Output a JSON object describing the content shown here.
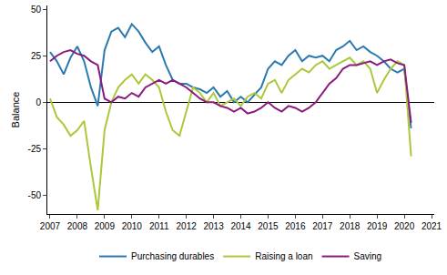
{
  "chart_data": {
    "type": "line",
    "y_label": "Balance",
    "x": [
      2007,
      2007.25,
      2007.5,
      2007.75,
      2008,
      2008.25,
      2008.5,
      2008.75,
      2009,
      2009.25,
      2009.5,
      2009.75,
      2010,
      2010.25,
      2010.5,
      2010.75,
      2011,
      2011.25,
      2011.5,
      2011.75,
      2012,
      2012.25,
      2012.5,
      2012.75,
      2013,
      2013.25,
      2013.5,
      2013.75,
      2014,
      2014.25,
      2014.5,
      2014.75,
      2015,
      2015.25,
      2015.5,
      2015.75,
      2016,
      2016.25,
      2016.5,
      2016.75,
      2017,
      2017.25,
      2017.5,
      2017.75,
      2018,
      2018.25,
      2018.5,
      2018.75,
      2019,
      2019.25,
      2019.5,
      2019.75,
      2020,
      2020.25
    ],
    "series": [
      {
        "name": "Purchasing durables",
        "color": "#2a7ab0",
        "values": [
          27,
          22,
          15,
          24,
          30,
          22,
          8,
          -2,
          28,
          38,
          40,
          35,
          42,
          38,
          32,
          27,
          30,
          20,
          12,
          10,
          10,
          8,
          7,
          5,
          8,
          3,
          6,
          0,
          3,
          0,
          4,
          8,
          18,
          22,
          20,
          25,
          28,
          22,
          25,
          24,
          25,
          22,
          28,
          30,
          33,
          28,
          30,
          27,
          25,
          22,
          18,
          16,
          18,
          -14
        ]
      },
      {
        "name": "Raising a loan",
        "color": "#aac83a",
        "values": [
          2,
          -8,
          -12,
          -18,
          -15,
          -10,
          -35,
          -58,
          -15,
          0,
          8,
          12,
          15,
          10,
          15,
          12,
          8,
          -5,
          -15,
          -18,
          -5,
          8,
          5,
          0,
          5,
          -2,
          0,
          2,
          -2,
          3,
          5,
          2,
          10,
          12,
          5,
          12,
          15,
          18,
          16,
          20,
          22,
          18,
          20,
          22,
          24,
          20,
          22,
          18,
          5,
          12,
          18,
          22,
          20,
          -29
        ]
      },
      {
        "name": "Saving",
        "color": "#8b1a7f",
        "values": [
          22,
          25,
          27,
          28,
          26,
          25,
          22,
          20,
          2,
          0,
          3,
          2,
          5,
          3,
          8,
          10,
          12,
          10,
          12,
          10,
          8,
          5,
          2,
          0,
          0,
          -2,
          -3,
          -5,
          -3,
          -6,
          -5,
          -3,
          0,
          -3,
          -5,
          -2,
          -3,
          -5,
          -3,
          0,
          5,
          10,
          13,
          18,
          20,
          20,
          21,
          22,
          20,
          22,
          23,
          21,
          20,
          -11
        ]
      }
    ],
    "xlim": [
      2006.9,
      2021.1
    ],
    "xticks": [
      2007,
      2008,
      2009,
      2010,
      2011,
      2012,
      2013,
      2014,
      2015,
      2016,
      2017,
      2018,
      2019,
      2020,
      2021
    ],
    "ylim": [
      -60,
      52
    ],
    "yticks": [
      -50,
      -25,
      0,
      25,
      50
    ],
    "grid": false,
    "legend": "bottom"
  }
}
